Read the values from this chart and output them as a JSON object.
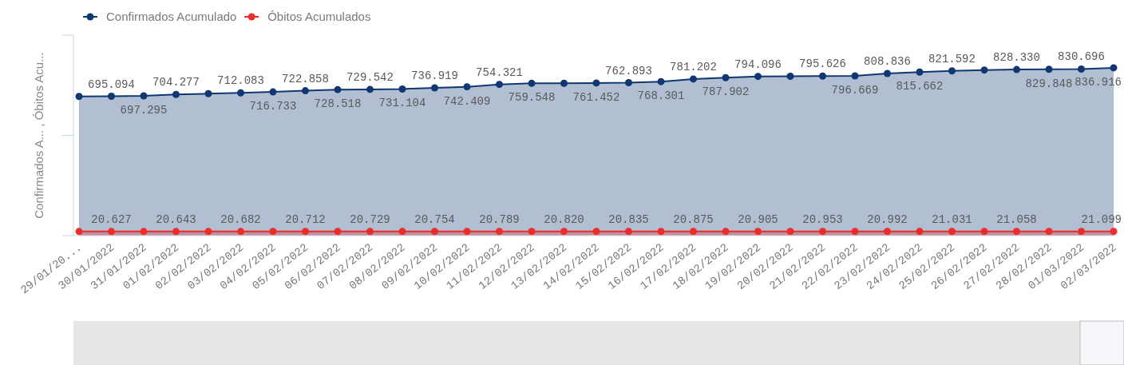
{
  "chart_data": {
    "type": "area",
    "ylabel": "Confirmados A... , Óbitos Acu...",
    "categories": [
      "29/01/20...",
      "30/01/2022",
      "31/01/2022",
      "01/02/2022",
      "02/02/2022",
      "03/02/2022",
      "04/02/2022",
      "05/02/2022",
      "06/02/2022",
      "07/02/2022",
      "08/02/2022",
      "09/02/2022",
      "10/02/2022",
      "11/02/2022",
      "12/02/2022",
      "13/02/2022",
      "14/02/2022",
      "15/02/2022",
      "16/02/2022",
      "17/02/2022",
      "18/02/2022",
      "19/02/2022",
      "20/02/2022",
      "21/02/2022",
      "22/02/2022",
      "23/02/2022",
      "24/02/2022",
      "25/02/2022",
      "26/02/2022",
      "27/02/2022",
      "28/02/2022",
      "01/03/2022",
      "02/03/2022"
    ],
    "series": [
      {
        "name": "Confirmados Acumulado",
        "color": "#0f3872",
        "values": [
          694000,
          695094,
          697295,
          704277,
          708000,
          712083,
          716733,
          722858,
          728518,
          729542,
          731104,
          736919,
          742409,
          754321,
          759548,
          760000,
          761452,
          762893,
          768301,
          781202,
          787902,
          794096,
          795000,
          795626,
          796669,
          808836,
          815662,
          821592,
          826000,
          828330,
          829848,
          830696,
          836916
        ],
        "value_labels": [
          null,
          "695.094",
          "697.295",
          "704.277",
          null,
          "712.083",
          "716.733",
          "722.858",
          "728.518",
          "729.542",
          "731.104",
          "736.919",
          "742.409",
          "754.321",
          "759.548",
          null,
          "761.452",
          "762.893",
          "768.301",
          "781.202",
          "787.902",
          "794.096",
          null,
          "795.626",
          "796.669",
          "808.836",
          "815.662",
          "821.592",
          null,
          "828.330",
          "829.848",
          "830.696",
          "836.916"
        ]
      },
      {
        "name": "Óbitos Acumulados",
        "color": "#ec2d2a",
        "values": [
          20600,
          20627,
          20630,
          20643,
          20660,
          20682,
          20700,
          20712,
          20720,
          20729,
          20740,
          20754,
          20770,
          20789,
          20800,
          20820,
          20830,
          20835,
          20850,
          20875,
          20890,
          20905,
          20930,
          20953,
          20970,
          20992,
          21010,
          21031,
          21040,
          21058,
          21070,
          21080,
          21099
        ],
        "value_labels": [
          null,
          "20.627",
          null,
          "20.643",
          null,
          "20.682",
          null,
          "20.712",
          null,
          "20.729",
          null,
          "20.754",
          null,
          "20.789",
          null,
          "20.820",
          null,
          "20.835",
          null,
          "20.875",
          null,
          "20.905",
          null,
          "20.953",
          null,
          "20.992",
          null,
          "21.031",
          null,
          "21.058",
          null,
          null,
          "21.099"
        ]
      }
    ],
    "ylim": [
      0,
      1000000
    ],
    "yticks": [
      {
        "value": 0,
        "label": null
      },
      {
        "value": 500000,
        "label": null
      },
      {
        "value": 1000000,
        "label": null
      }
    ],
    "tick_labels": "x",
    "marker": "circle",
    "legend": "top left",
    "grid": false
  }
}
